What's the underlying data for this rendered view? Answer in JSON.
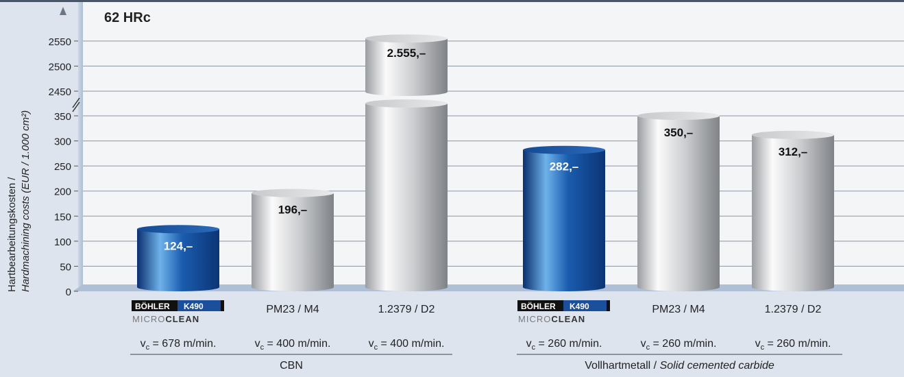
{
  "chart_data": {
    "type": "bar",
    "title": "62 HRc",
    "ylabel_line1": "Hartbearbeitungskosten /",
    "ylabel_line2": "Hardmachining costs (EUR / 1.000 cm²)",
    "y_ticks_lower": [
      0,
      50,
      100,
      150,
      200,
      250,
      300,
      350
    ],
    "y_ticks_upper": [
      2450,
      2500,
      2550
    ],
    "axis_break": [
      350,
      2450
    ],
    "grid": true,
    "bars": [
      {
        "group": "CBN",
        "material": "BÖHLER K490 MICROCLEAN",
        "brand": true,
        "value": 124,
        "label": "124,–",
        "speed": "678 m/min.",
        "color": "blue"
      },
      {
        "group": "CBN",
        "material": "PM23 / M4",
        "brand": false,
        "value": 196,
        "label": "196,–",
        "speed": "400 m/min.",
        "color": "gray"
      },
      {
        "group": "CBN",
        "material": "1.2379 / D2",
        "brand": false,
        "value": 2555,
        "label": "2.555,–",
        "speed": "400 m/min.",
        "color": "gray"
      },
      {
        "group": "Vollhartmetall",
        "material": "BÖHLER K490 MICROCLEAN",
        "brand": true,
        "value": 282,
        "label": "282,–",
        "speed": "260 m/min.",
        "color": "blue"
      },
      {
        "group": "Vollhartmetall",
        "material": "PM23 / M4",
        "brand": false,
        "value": 350,
        "label": "350,–",
        "speed": "260 m/min.",
        "color": "gray"
      },
      {
        "group": "Vollhartmetall",
        "material": "1.2379 / D2",
        "brand": false,
        "value": 312,
        "label": "312,–",
        "speed": "260 m/min.",
        "color": "gray"
      }
    ],
    "groups": [
      {
        "name": "CBN",
        "italic_part": ""
      },
      {
        "name": "Vollhartmetall / ",
        "italic_part": "Solid cemented carbide"
      }
    ],
    "speed_symbol": "v",
    "speed_subscript": "c",
    "speed_eq": " = ",
    "brand_name": "BÖHLER",
    "brand_grade": "K490",
    "brand_sub_a": "MICRO",
    "brand_sub_b": "CLEAN"
  },
  "colors": {
    "background": "#dde4ee",
    "plot_bg": "#f4f5f7",
    "header_line": "#4a5668",
    "grid": "#8a95a4",
    "axis_strip": "#aebfd6",
    "blue_dark": "#0e3f86",
    "blue_light": "#5aa3e0",
    "gray_dark": "#7b7e82",
    "gray_light": "#f2f2f2"
  }
}
